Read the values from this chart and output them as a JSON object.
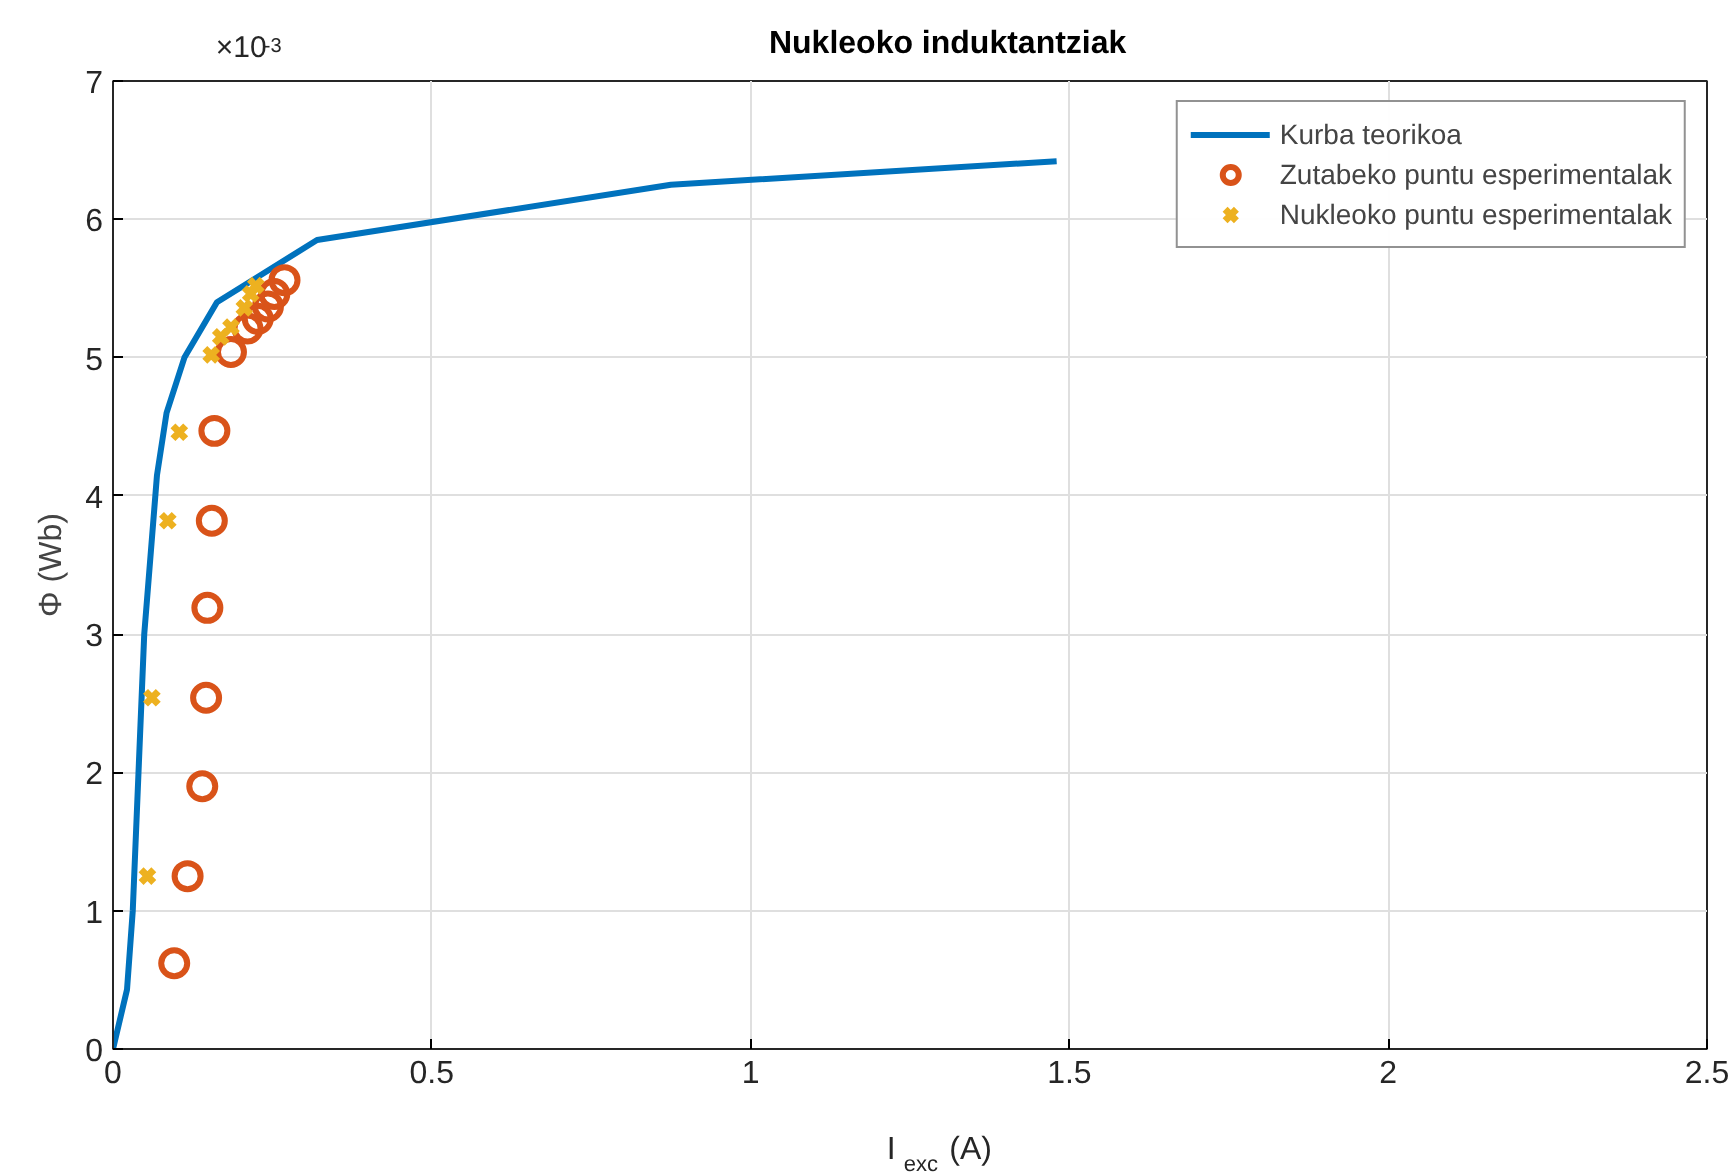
{
  "chart_data": {
    "type": "line",
    "title": "Nukleoko induktantziak",
    "xlabel": "I$_{exc}$ (A)",
    "ylabel": "Φ (Wb)",
    "annotations": [
      "×10$^{-3}$"
    ],
    "xlim": [
      0,
      2.5
    ],
    "ylim": [
      0,
      7
    ],
    "xticks": [
      0,
      0.5,
      1,
      1.5,
      2,
      2.5
    ],
    "yticks": [
      0,
      1,
      2,
      3,
      4,
      5,
      6,
      7
    ],
    "grid": true,
    "legend": "top right",
    "series": [
      {
        "name": "Kurba teorikoa",
        "color": "#0072bd",
        "marker": "none",
        "x": [
          0,
          0.022,
          0.031,
          0.049,
          0.069,
          0.084,
          0.112,
          0.163,
          0.32,
          0.875,
          1.48
        ],
        "values": [
          0,
          0.43,
          1.0,
          3.0,
          4.15,
          4.6,
          5.0,
          5.4,
          5.85,
          6.25,
          6.42
        ]
      },
      {
        "name": "Zutabeko puntu esperimentalak",
        "type": "scatter",
        "color": "#d95319",
        "marker": "circle",
        "x": [
          0.096,
          0.117,
          0.14,
          0.146,
          0.148,
          0.155,
          0.159,
          0.185,
          0.211,
          0.227,
          0.243,
          0.253,
          0.269
        ],
        "values": [
          0.62,
          1.25,
          1.9,
          2.54,
          3.19,
          3.82,
          4.47,
          5.04,
          5.21,
          5.28,
          5.37,
          5.46,
          5.56
        ]
      },
      {
        "name": "Nukleoko puntu esperimentalak",
        "type": "scatter",
        "color": "#edb120",
        "marker": "cross",
        "x": [
          0.054,
          0.061,
          0.086,
          0.104,
          0.154,
          0.169,
          0.185,
          0.206,
          0.216,
          0.224
        ],
        "values": [
          1.25,
          2.54,
          3.82,
          4.46,
          5.02,
          5.15,
          5.22,
          5.36,
          5.46,
          5.52
        ]
      }
    ]
  }
}
